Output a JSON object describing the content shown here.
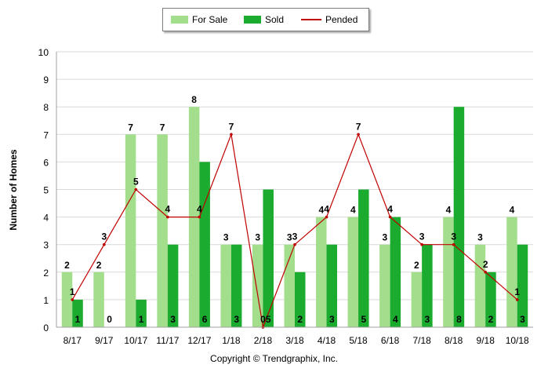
{
  "legend": {
    "for_sale": "For Sale",
    "sold": "Sold",
    "pended": "Pended"
  },
  "footer": "Copyright © Trendgraphix, Inc.",
  "colors": {
    "for_sale": "#a3de8c",
    "sold": "#1aab2f",
    "pended": "#c00000",
    "grid": "#d9d9d9"
  },
  "chart_data": {
    "type": "bar",
    "title": "",
    "xlabel": "",
    "ylabel": "Number of Homes",
    "ylim": [
      0,
      10
    ],
    "yticks": [
      0,
      1,
      2,
      3,
      4,
      5,
      6,
      7,
      8,
      9,
      10
    ],
    "grid": true,
    "legend_position": "top",
    "categories": [
      "8/17",
      "9/17",
      "10/17",
      "11/17",
      "12/17",
      "1/18",
      "2/18",
      "3/18",
      "4/18",
      "5/18",
      "6/18",
      "7/18",
      "8/18",
      "9/18",
      "10/18"
    ],
    "series": [
      {
        "name": "For Sale",
        "type": "bar",
        "values": [
          2,
          2,
          7,
          7,
          8,
          3,
          3,
          3,
          4,
          4,
          3,
          2,
          4,
          3,
          4
        ]
      },
      {
        "name": "Sold",
        "type": "bar",
        "values": [
          1,
          0,
          1,
          3,
          6,
          3,
          5,
          2,
          3,
          5,
          4,
          3,
          8,
          2,
          3
        ]
      },
      {
        "name": "Pended",
        "type": "line",
        "values": [
          1,
          3,
          5,
          4,
          4,
          7,
          0,
          3,
          4,
          7,
          4,
          3,
          3,
          2,
          1
        ]
      }
    ]
  }
}
